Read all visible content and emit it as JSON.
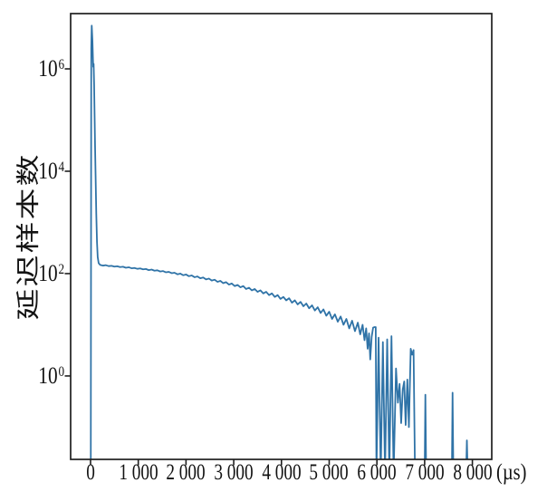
{
  "figure": {
    "background": "#ffffff",
    "description": "Log-scale line chart of delay sample counts versus delay time in microseconds"
  },
  "chart_data": {
    "type": "line",
    "title": "",
    "xlabel": "",
    "ylabel": "延迟样本数",
    "x_unit_label": "(µs)",
    "y_scale": "log",
    "grid": false,
    "legend": false,
    "line_color": "#2f73a7",
    "axis_color": "#1f1f1f",
    "xlim_us": [
      -417,
      8406
    ],
    "ylim_log10": [
      -1.63,
      7.08
    ],
    "x_ticks": [
      0,
      1000,
      2000,
      3000,
      4000,
      5000,
      6000,
      7000,
      8000
    ],
    "x_tick_labels": [
      "0",
      "1 000",
      "2 000",
      "3 000",
      "4 000",
      "5 000",
      "6 000",
      "7 000",
      "8 000"
    ],
    "y_tick_exponents": [
      0,
      2,
      4,
      6
    ],
    "zero_handling": "points with count 0 are drawn clipped to the bottom axis (log scale)",
    "series": [
      {
        "name": "延迟样本数",
        "points": [
          [
            5,
            0.001
          ],
          [
            15,
            2500000
          ],
          [
            25,
            7000000
          ],
          [
            40,
            3500000
          ],
          [
            55,
            1100000
          ],
          [
            65,
            1250000
          ],
          [
            75,
            500000
          ],
          [
            85,
            120000
          ],
          [
            95,
            30000
          ],
          [
            105,
            9000
          ],
          [
            120,
            1500
          ],
          [
            135,
            420
          ],
          [
            150,
            210
          ],
          [
            170,
            160
          ],
          [
            200,
            148
          ],
          [
            260,
            143
          ],
          [
            320,
            146
          ],
          [
            380,
            140
          ],
          [
            440,
            142
          ],
          [
            500,
            137
          ],
          [
            560,
            139
          ],
          [
            620,
            134
          ],
          [
            680,
            136
          ],
          [
            740,
            130
          ],
          [
            800,
            133
          ],
          [
            860,
            127
          ],
          [
            920,
            129
          ],
          [
            980,
            124
          ],
          [
            1040,
            126
          ],
          [
            1100,
            121
          ],
          [
            1160,
            123
          ],
          [
            1220,
            117
          ],
          [
            1280,
            120
          ],
          [
            1340,
            114
          ],
          [
            1400,
            116
          ],
          [
            1460,
            110
          ],
          [
            1520,
            112
          ],
          [
            1580,
            106
          ],
          [
            1640,
            108
          ],
          [
            1700,
            102
          ],
          [
            1760,
            104
          ],
          [
            1820,
            97
          ],
          [
            1880,
            100
          ],
          [
            1940,
            93
          ],
          [
            2000,
            96
          ],
          [
            2060,
            89
          ],
          [
            2120,
            92
          ],
          [
            2180,
            85
          ],
          [
            2240,
            88
          ],
          [
            2300,
            81
          ],
          [
            2360,
            84
          ],
          [
            2420,
            77
          ],
          [
            2480,
            80
          ],
          [
            2540,
            73
          ],
          [
            2600,
            76
          ],
          [
            2660,
            69
          ],
          [
            2720,
            72
          ],
          [
            2780,
            65
          ],
          [
            2840,
            68
          ],
          [
            2900,
            61
          ],
          [
            2960,
            64
          ],
          [
            3020,
            57
          ],
          [
            3080,
            60
          ],
          [
            3140,
            54
          ],
          [
            3200,
            57
          ],
          [
            3260,
            50
          ],
          [
            3320,
            53
          ],
          [
            3380,
            47
          ],
          [
            3440,
            50
          ],
          [
            3500,
            44
          ],
          [
            3560,
            47
          ],
          [
            3620,
            41
          ],
          [
            3680,
            44
          ],
          [
            3740,
            38
          ],
          [
            3800,
            41
          ],
          [
            3860,
            35
          ],
          [
            3920,
            38
          ],
          [
            3980,
            32
          ],
          [
            4040,
            35
          ],
          [
            4100,
            30
          ],
          [
            4160,
            33
          ],
          [
            4220,
            27
          ],
          [
            4280,
            30
          ],
          [
            4340,
            25
          ],
          [
            4400,
            28
          ],
          [
            4460,
            23
          ],
          [
            4520,
            26
          ],
          [
            4580,
            21
          ],
          [
            4640,
            24
          ],
          [
            4700,
            19
          ],
          [
            4760,
            22
          ],
          [
            4820,
            17
          ],
          [
            4880,
            20
          ],
          [
            4940,
            15
          ],
          [
            5000,
            18
          ],
          [
            5060,
            13
          ],
          [
            5120,
            16
          ],
          [
            5180,
            11.5
          ],
          [
            5240,
            14.5
          ],
          [
            5300,
            10
          ],
          [
            5360,
            13
          ],
          [
            5420,
            8.5
          ],
          [
            5480,
            12
          ],
          [
            5540,
            7.5
          ],
          [
            5600,
            11
          ],
          [
            5650,
            6.5
          ],
          [
            5700,
            10
          ],
          [
            5740,
            5.0
          ],
          [
            5775,
            8.5
          ],
          [
            5805,
            3.4
          ],
          [
            5835,
            6.8
          ],
          [
            5860,
            2.1
          ],
          [
            5890,
            5.8
          ],
          [
            5920,
            8.8
          ],
          [
            5950,
            9.0
          ],
          [
            5975,
            9.0
          ],
          [
            5990,
            0
          ],
          [
            6035,
            5.6
          ],
          [
            6080,
            0
          ],
          [
            6125,
            4.6
          ],
          [
            6170,
            0
          ],
          [
            6215,
            5.2
          ],
          [
            6260,
            0
          ],
          [
            6305,
            6.0
          ],
          [
            6350,
            0
          ],
          [
            6400,
            1.4
          ],
          [
            6440,
            0.3
          ],
          [
            6475,
            0.7
          ],
          [
            6508,
            0.12
          ],
          [
            6542,
            0.55
          ],
          [
            6572,
            0.78
          ],
          [
            6602,
            0.11
          ],
          [
            6638,
            0.85
          ],
          [
            6670,
            0.1
          ],
          [
            6708,
            3.4
          ],
          [
            6738,
            2.6
          ],
          [
            6768,
            3.2
          ],
          [
            6798,
            0
          ],
          [
            7000,
            0
          ],
          [
            7015,
            0.43
          ],
          [
            7032,
            0
          ],
          [
            7570,
            0
          ],
          [
            7585,
            0.47
          ],
          [
            7602,
            0
          ],
          [
            7868,
            0
          ],
          [
            7885,
            0.055
          ],
          [
            7902,
            0
          ]
        ]
      }
    ]
  }
}
